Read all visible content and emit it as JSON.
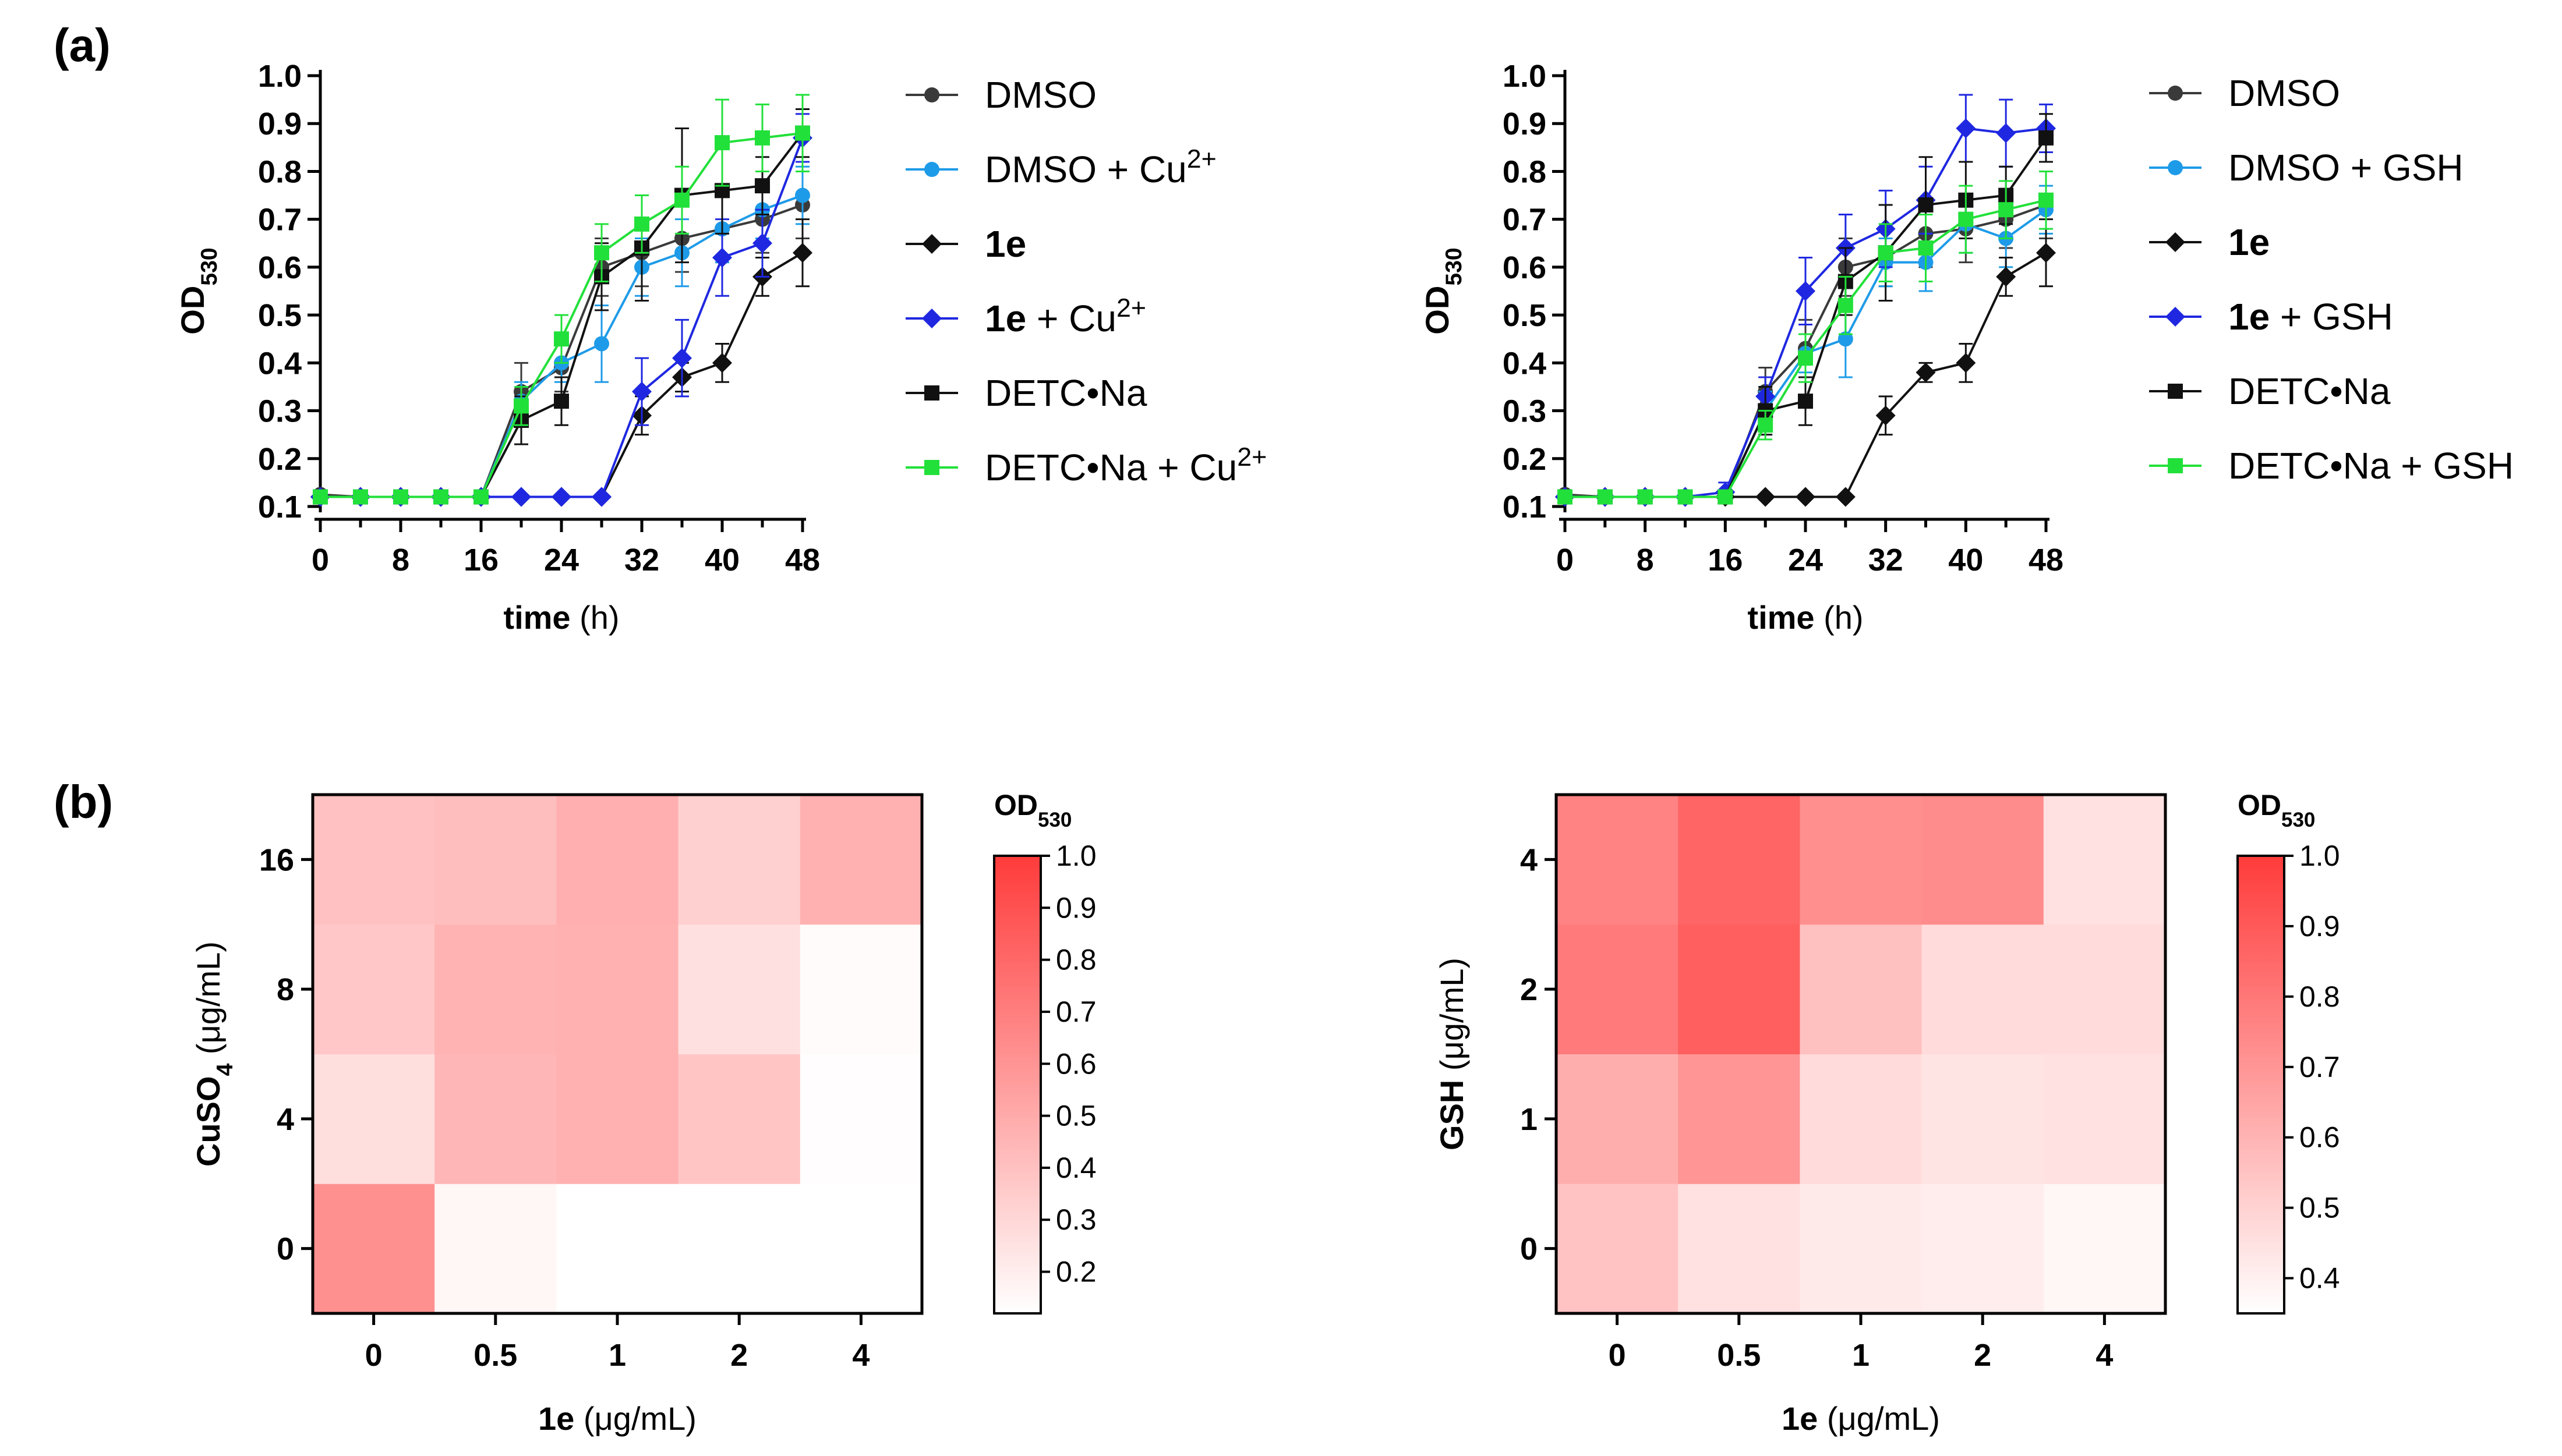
{
  "panels": {
    "a": "(a)",
    "b": "(b)"
  },
  "chart_data": [
    {
      "type": "line",
      "x": [
        0,
        4,
        8,
        12,
        16,
        20,
        24,
        28,
        32,
        36,
        40,
        44,
        48
      ],
      "xlim": [
        0,
        48
      ],
      "ylim": [
        0.1,
        1.0
      ],
      "xticks": [
        "0",
        "8",
        "16",
        "24",
        "32",
        "40",
        "48"
      ],
      "yticks": [
        "0.1",
        "0.2",
        "0.3",
        "0.4",
        "0.5",
        "0.6",
        "0.7",
        "0.8",
        "0.9",
        "1.0"
      ],
      "xlabel": {
        "bold": "time",
        "rest": " (h)"
      },
      "ylabel": {
        "main": "OD",
        "sub": "530"
      },
      "series": [
        {
          "name": "DMSO",
          "label_parts": [
            {
              "t": "DMSO"
            }
          ],
          "color": "#3a3a3a",
          "marker": "circle",
          "values": [
            0.125,
            0.12,
            0.12,
            0.12,
            0.12,
            0.34,
            0.39,
            0.6,
            0.63,
            0.66,
            0.68,
            0.7,
            0.73
          ],
          "errors": [
            0,
            0,
            0,
            0,
            0,
            0.06,
            0.05,
            0.06,
            0.07,
            0.07,
            0.07,
            0.07,
            0.07
          ]
        },
        {
          "name": "DMSO + Cu2+",
          "label_parts": [
            {
              "t": "DMSO + Cu"
            },
            {
              "t": "2+",
              "sup": true
            }
          ],
          "color": "#1e9be8",
          "marker": "circle",
          "values": [
            0.12,
            0.12,
            0.12,
            0.12,
            0.12,
            0.32,
            0.4,
            0.44,
            0.6,
            0.63,
            0.68,
            0.72,
            0.75
          ],
          "errors": [
            0,
            0,
            0,
            0,
            0,
            0.04,
            0.04,
            0.08,
            0.06,
            0.07,
            0.07,
            0.06,
            0.06
          ]
        },
        {
          "name": "1e",
          "label_parts": [
            {
              "t": "1e",
              "bold": true
            }
          ],
          "color": "#111111",
          "marker": "diamond",
          "values": [
            0.12,
            0.12,
            0.12,
            0.12,
            0.12,
            0.12,
            0.12,
            0.12,
            0.29,
            0.37,
            0.4,
            0.58,
            0.63
          ],
          "errors": [
            0,
            0,
            0,
            0,
            0,
            0,
            0,
            0,
            0.04,
            0.03,
            0.04,
            0.04,
            0.07
          ]
        },
        {
          "name": "1e + Cu2+",
          "label_parts": [
            {
              "t": "1e",
              "bold": true
            },
            {
              "t": " + Cu"
            },
            {
              "t": "2+",
              "sup": true
            }
          ],
          "color": "#1f28e0",
          "marker": "diamond",
          "values": [
            0.12,
            0.12,
            0.12,
            0.12,
            0.12,
            0.12,
            0.12,
            0.12,
            0.34,
            0.41,
            0.62,
            0.65,
            0.87
          ],
          "errors": [
            0,
            0,
            0,
            0,
            0,
            0,
            0,
            0,
            0.07,
            0.08,
            0.08,
            0.07,
            0.05
          ]
        },
        {
          "name": "DETC•Na",
          "label_parts": [
            {
              "t": "DETC•Na"
            }
          ],
          "color": "#111111",
          "marker": "square",
          "values": [
            0.12,
            0.12,
            0.12,
            0.12,
            0.12,
            0.28,
            0.32,
            0.58,
            0.64,
            0.75,
            0.76,
            0.77,
            0.88
          ],
          "errors": [
            0,
            0,
            0,
            0,
            0,
            0.05,
            0.05,
            0.07,
            0.11,
            0.14,
            0.09,
            0.06,
            0.05
          ]
        },
        {
          "name": "DETC•Na + Cu2+",
          "label_parts": [
            {
              "t": "DETC•Na + Cu"
            },
            {
              "t": "2+",
              "sup": true
            }
          ],
          "color": "#22e03a",
          "marker": "square",
          "values": [
            0.12,
            0.12,
            0.12,
            0.12,
            0.12,
            0.31,
            0.45,
            0.63,
            0.69,
            0.74,
            0.86,
            0.87,
            0.88
          ],
          "errors": [
            0,
            0,
            0,
            0,
            0,
            0.04,
            0.05,
            0.06,
            0.06,
            0.07,
            0.09,
            0.07,
            0.08
          ]
        }
      ]
    },
    {
      "type": "line",
      "x": [
        0,
        4,
        8,
        12,
        16,
        20,
        24,
        28,
        32,
        36,
        40,
        44,
        48
      ],
      "xlim": [
        0,
        48
      ],
      "ylim": [
        0.1,
        1.0
      ],
      "xticks": [
        "0",
        "8",
        "16",
        "24",
        "32",
        "40",
        "48"
      ],
      "yticks": [
        "0.1",
        "0.2",
        "0.3",
        "0.4",
        "0.5",
        "0.6",
        "0.7",
        "0.8",
        "0.9",
        "1.0"
      ],
      "xlabel": {
        "bold": "time",
        "rest": " (h)"
      },
      "ylabel": {
        "main": "OD",
        "sub": "530"
      },
      "series": [
        {
          "name": "DMSO",
          "label_parts": [
            {
              "t": "DMSO"
            }
          ],
          "color": "#3a3a3a",
          "marker": "circle",
          "values": [
            0.125,
            0.12,
            0.12,
            0.12,
            0.12,
            0.34,
            0.43,
            0.6,
            0.62,
            0.67,
            0.68,
            0.7,
            0.73
          ],
          "errors": [
            0,
            0,
            0,
            0,
            0,
            0.05,
            0.06,
            0.06,
            0.06,
            0.07,
            0.07,
            0.06,
            0.07
          ]
        },
        {
          "name": "DMSO + GSH",
          "label_parts": [
            {
              "t": "DMSO + GSH"
            }
          ],
          "color": "#1e9be8",
          "marker": "circle",
          "values": [
            0.12,
            0.12,
            0.12,
            0.12,
            0.12,
            0.3,
            0.42,
            0.45,
            0.61,
            0.61,
            0.69,
            0.66,
            0.72
          ],
          "errors": [
            0,
            0,
            0,
            0,
            0,
            0.04,
            0.04,
            0.08,
            0.05,
            0.06,
            0.06,
            0.06,
            0.05
          ]
        },
        {
          "name": "1e",
          "label_parts": [
            {
              "t": "1e",
              "bold": true
            }
          ],
          "color": "#111111",
          "marker": "diamond",
          "values": [
            0.12,
            0.12,
            0.12,
            0.12,
            0.12,
            0.12,
            0.12,
            0.12,
            0.29,
            0.38,
            0.4,
            0.58,
            0.63
          ],
          "errors": [
            0,
            0,
            0,
            0,
            0,
            0,
            0,
            0,
            0.04,
            0.02,
            0.04,
            0.04,
            0.07
          ]
        },
        {
          "name": "1e + GSH",
          "label_parts": [
            {
              "t": "1e",
              "bold": true
            },
            {
              "t": " + GSH"
            }
          ],
          "color": "#1f28e0",
          "marker": "diamond",
          "values": [
            0.12,
            0.12,
            0.12,
            0.12,
            0.13,
            0.33,
            0.55,
            0.64,
            0.68,
            0.74,
            0.89,
            0.88,
            0.89
          ],
          "errors": [
            0,
            0,
            0,
            0,
            0.02,
            0.04,
            0.07,
            0.07,
            0.08,
            0.07,
            0.07,
            0.07,
            0.05
          ]
        },
        {
          "name": "DETC•Na",
          "label_parts": [
            {
              "t": "DETC•Na"
            }
          ],
          "color": "#111111",
          "marker": "square",
          "values": [
            0.12,
            0.12,
            0.12,
            0.12,
            0.12,
            0.3,
            0.32,
            0.57,
            0.63,
            0.73,
            0.74,
            0.75,
            0.87
          ],
          "errors": [
            0,
            0,
            0,
            0,
            0,
            0.05,
            0.05,
            0.07,
            0.1,
            0.1,
            0.08,
            0.06,
            0.05
          ]
        },
        {
          "name": "DETC•Na + GSH",
          "label_parts": [
            {
              "t": "DETC•Na + GSH"
            }
          ],
          "color": "#22e03a",
          "marker": "square",
          "values": [
            0.12,
            0.12,
            0.12,
            0.12,
            0.12,
            0.27,
            0.41,
            0.52,
            0.63,
            0.64,
            0.7,
            0.72,
            0.74
          ],
          "errors": [
            0,
            0,
            0,
            0,
            0,
            0.03,
            0.05,
            0.06,
            0.06,
            0.07,
            0.07,
            0.06,
            0.06
          ]
        }
      ]
    },
    {
      "type": "heatmap",
      "x_categories": [
        "0",
        "0.5",
        "1",
        "2",
        "4"
      ],
      "y_categories": [
        "0",
        "4",
        "8",
        "16"
      ],
      "values": [
        [
          0.62,
          0.16,
          0.12,
          0.12,
          0.12
        ],
        [
          0.27,
          0.45,
          0.47,
          0.38,
          0.13
        ],
        [
          0.37,
          0.46,
          0.47,
          0.26,
          0.14
        ],
        [
          0.4,
          0.41,
          0.48,
          0.33,
          0.47
        ]
      ],
      "xlabel": {
        "bold": "1e",
        "rest": " (μg/mL)"
      },
      "ylabel": {
        "bold_parts": [
          {
            "t": "CuSO"
          },
          {
            "t": "4",
            "sub": true
          }
        ],
        "rest": " (μg/mL)"
      },
      "colorbar": {
        "title_main": "OD",
        "title_sub": "530",
        "min": 0.12,
        "max": 1.0,
        "ticks": [
          0.2,
          0.3,
          0.4,
          0.5,
          0.6,
          0.7,
          0.8,
          0.9,
          1.0
        ],
        "tick_labels": [
          "0.2",
          "0.3",
          "0.4",
          "0.5",
          "0.6",
          "0.7",
          "0.8",
          "0.9",
          "1.0"
        ],
        "color_low": "#ffffff",
        "color_high": "#ff3b3b"
      }
    },
    {
      "type": "heatmap",
      "x_categories": [
        "0",
        "0.5",
        "1",
        "2",
        "4"
      ],
      "y_categories": [
        "0",
        "1",
        "2",
        "4"
      ],
      "values": [
        [
          0.55,
          0.45,
          0.42,
          0.41,
          0.38
        ],
        [
          0.62,
          0.7,
          0.47,
          0.44,
          0.45
        ],
        [
          0.79,
          0.88,
          0.56,
          0.47,
          0.47
        ],
        [
          0.76,
          0.86,
          0.72,
          0.73,
          0.45
        ]
      ],
      "xlabel": {
        "bold": "1e",
        "rest": " (μg/mL)"
      },
      "ylabel": {
        "bold_parts": [
          {
            "t": "GSH"
          }
        ],
        "rest": " (μg/mL)"
      },
      "colorbar": {
        "title_main": "OD",
        "title_sub": "530",
        "min": 0.35,
        "max": 1.0,
        "ticks": [
          0.4,
          0.5,
          0.6,
          0.7,
          0.8,
          0.9,
          1.0
        ],
        "tick_labels": [
          "0.4",
          "0.5",
          "0.6",
          "0.7",
          "0.8",
          "0.9",
          "1.0"
        ],
        "color_low": "#ffffff",
        "color_high": "#ff3b3b"
      }
    }
  ]
}
